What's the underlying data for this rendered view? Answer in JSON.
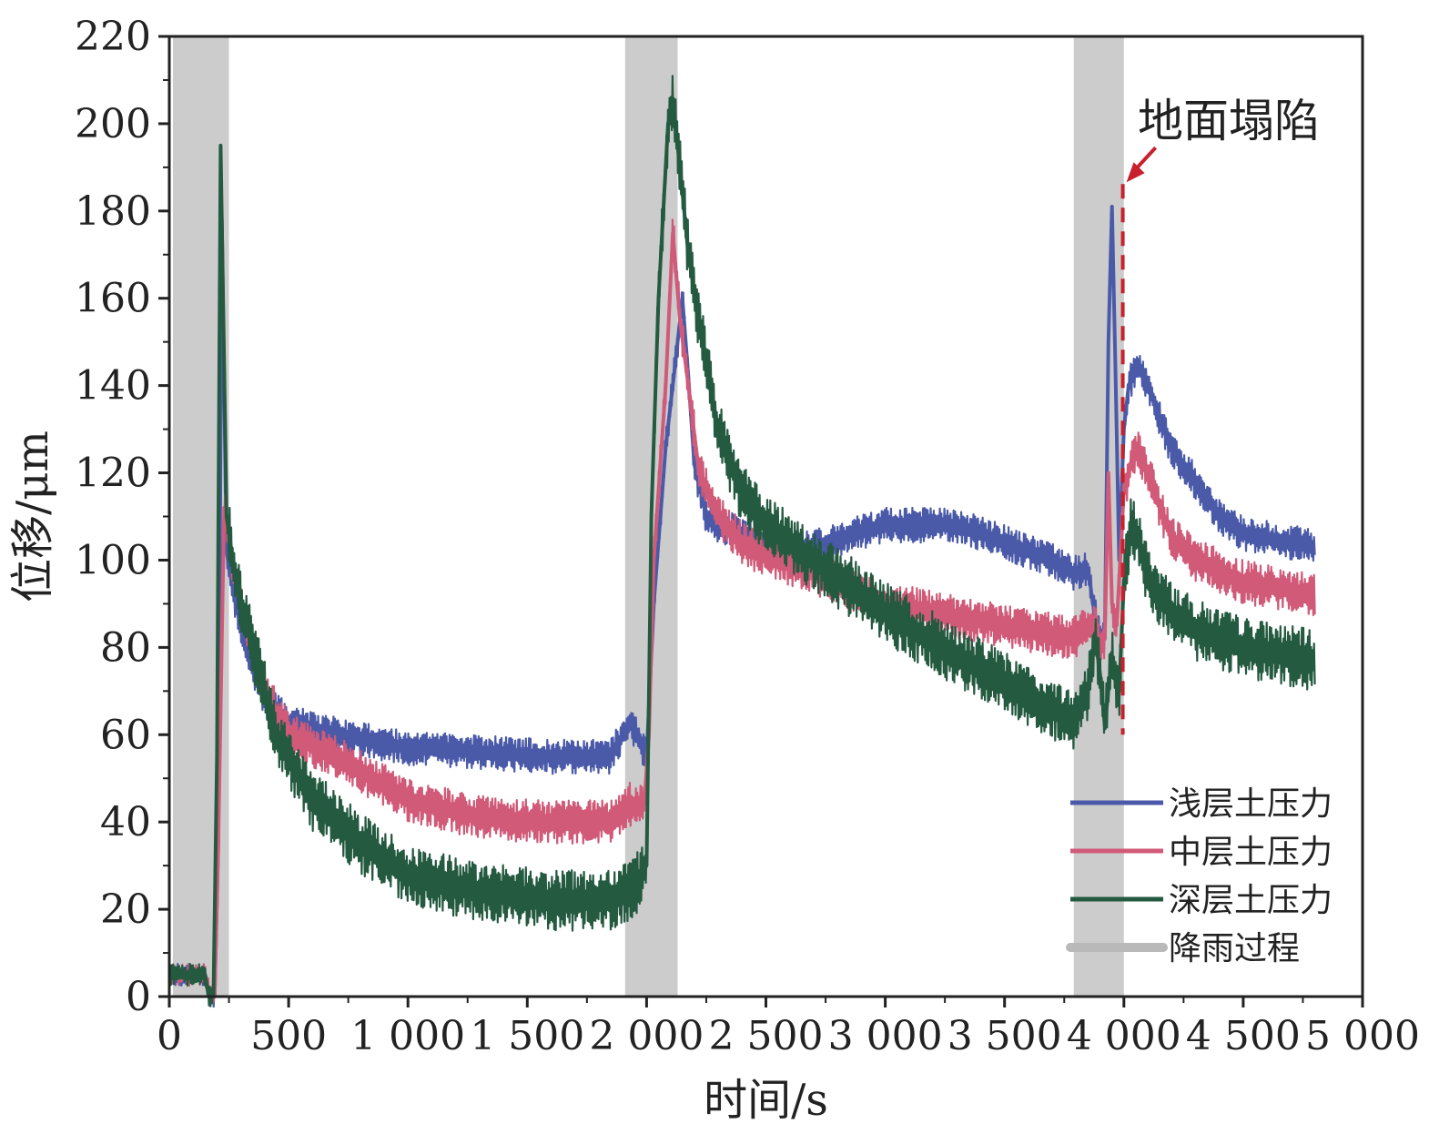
{
  "chart_data": {
    "type": "line",
    "xlabel": "时间/s",
    "ylabel": "位移/μm",
    "xlim": [
      0,
      5000
    ],
    "ylim": [
      0,
      220
    ],
    "xticks": [
      0,
      500,
      1000,
      1500,
      2000,
      2500,
      3000,
      3500,
      4000,
      4500,
      5000
    ],
    "xtick_labels": [
      "0",
      "500",
      "1 000",
      "1 500",
      "2 000",
      "2 500",
      "3 000",
      "3 500",
      "4 000",
      "4 500",
      "5 000"
    ],
    "yticks": [
      0,
      20,
      40,
      60,
      80,
      100,
      120,
      140,
      160,
      180,
      200,
      220
    ],
    "ytick_labels": [
      "0",
      "20",
      "40",
      "60",
      "80",
      "100",
      "120",
      "140",
      "160",
      "180",
      "200",
      "220"
    ],
    "grid": false,
    "legend_position": "bottom-right",
    "rain_periods": [
      [
        15,
        250
      ],
      [
        1910,
        2130
      ],
      [
        3790,
        4000
      ]
    ],
    "annotation": {
      "text": "地面塌陷",
      "x": 4003,
      "y": 187
    },
    "legend": {
      "rain_label": "降雨过程",
      "rain_color": "#cccccc"
    },
    "series": [
      {
        "name": "浅层土压力",
        "color": "#4a5aa8",
        "band": 4,
        "x": [
          0,
          150,
          170,
          190,
          205,
          220,
          240,
          270,
          320,
          400,
          500,
          700,
          1000,
          1300,
          1600,
          1850,
          1930,
          2000,
          2030,
          2080,
          2120,
          2150,
          2175,
          2200,
          2250,
          2300,
          2350,
          2400,
          2500,
          2600,
          2700,
          3000,
          3300,
          3500,
          3700,
          3790,
          3850,
          3870,
          3900,
          3920,
          3935,
          3950,
          3965,
          3980,
          4000,
          4020,
          4060,
          4100,
          4200,
          4300,
          4400,
          4500,
          4700,
          4800
        ],
        "y": [
          5,
          5,
          0,
          0,
          35,
          178,
          102,
          92,
          80,
          68,
          63,
          60,
          57,
          56,
          55,
          55,
          63,
          55,
          90,
          126,
          145,
          160,
          142,
          122,
          110,
          108,
          107,
          106,
          104,
          103,
          103,
          108,
          108,
          104,
          100,
          97,
          98,
          90,
          82,
          82,
          150,
          181,
          143,
          100,
          130,
          140,
          145,
          140,
          125,
          118,
          110,
          106,
          104,
          103
        ]
      },
      {
        "name": "中层土压力",
        "color": "#d05a78",
        "band": 5,
        "x": [
          0,
          150,
          170,
          190,
          205,
          230,
          260,
          300,
          400,
          500,
          700,
          1000,
          1300,
          1600,
          1850,
          1920,
          1990,
          2010,
          2030,
          2080,
          2110,
          2140,
          2175,
          2220,
          2300,
          2400,
          2500,
          2700,
          3000,
          3300,
          3500,
          3700,
          3790,
          3850,
          3880,
          3900,
          3920,
          3935,
          3950,
          3970,
          4000,
          4030,
          4060,
          4100,
          4200,
          4300,
          4500,
          4700,
          4800
        ],
        "y": [
          5,
          5,
          0,
          0,
          35,
          112,
          100,
          90,
          70,
          60,
          55,
          45,
          41,
          40,
          40,
          44,
          44,
          60,
          100,
          140,
          175,
          155,
          140,
          120,
          110,
          104,
          101,
          97,
          90,
          87,
          85,
          83,
          82,
          85,
          86,
          80,
          82,
          120,
          90,
          85,
          116,
          122,
          126,
          120,
          105,
          100,
          95,
          93,
          92
        ]
      },
      {
        "name": "深层土压力",
        "color": "#245a40",
        "band": 7,
        "x": [
          0,
          150,
          165,
          185,
          200,
          215,
          240,
          280,
          350,
          450,
          600,
          800,
          1000,
          1300,
          1600,
          1850,
          1950,
          2000,
          2020,
          2050,
          2090,
          2110,
          2140,
          2175,
          2250,
          2300,
          2400,
          2500,
          2700,
          3000,
          3300,
          3500,
          3700,
          3790,
          3850,
          3880,
          3900,
          3920,
          3950,
          3980,
          4000,
          4030,
          4060,
          4100,
          4200,
          4300,
          4500,
          4700,
          4800
        ],
        "y": [
          5,
          5,
          0,
          0,
          55,
          195,
          110,
          95,
          80,
          60,
          45,
          35,
          28,
          24,
          22,
          22,
          25,
          30,
          110,
          160,
          200,
          205,
          190,
          170,
          145,
          130,
          115,
          108,
          100,
          88,
          78,
          72,
          66,
          63,
          70,
          82,
          74,
          62,
          78,
          70,
          95,
          108,
          105,
          96,
          88,
          84,
          80,
          78,
          77
        ]
      }
    ]
  }
}
